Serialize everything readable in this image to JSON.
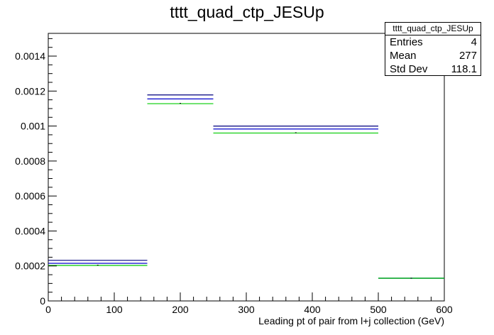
{
  "chart_data": {
    "type": "histogram",
    "title": "tttt_quad_ctp_JESUp",
    "xlabel": "Leading pt of pair from l+j collection (GeV)",
    "ylabel": "",
    "xlim": [
      0,
      600
    ],
    "ylim": [
      0,
      0.00153
    ],
    "x_ticks": [
      0,
      100,
      200,
      300,
      400,
      500,
      600
    ],
    "x_tick_labels": [
      "0",
      "100",
      "200",
      "300",
      "400",
      "500",
      "600"
    ],
    "y_ticks": [
      0,
      0.0002,
      0.0004,
      0.0006,
      0.0008,
      0.001,
      0.0012,
      0.0014
    ],
    "y_tick_labels": [
      "0",
      "0.0002",
      "0.0004",
      "0.0006",
      "0.0008",
      "0.001",
      "0.0012",
      "0.0014"
    ],
    "bin_edges": [
      0,
      150,
      250,
      500,
      600
    ],
    "series": [
      {
        "color": "#00007f",
        "values": [
          0.000232,
          0.001178,
          0.001,
          0.00013
        ]
      },
      {
        "color": "#0000cc",
        "values": [
          0.000215,
          0.001155,
          0.000983,
          0.00013
        ]
      },
      {
        "color": "#00cc00",
        "values": [
          0.000203,
          0.001128,
          0.00096,
          0.00013
        ]
      },
      {
        "color": "#000000",
        "values": [
          0.000205,
          0.00113,
          0.000962,
          0.00013
        ]
      }
    ],
    "stats": {
      "name": "tttt_quad_ctp_JESUp",
      "entries_label": "Entries",
      "entries": "4",
      "mean_label": "Mean",
      "mean": "277",
      "stddev_label": "Std Dev",
      "stddev": "118.1"
    }
  }
}
